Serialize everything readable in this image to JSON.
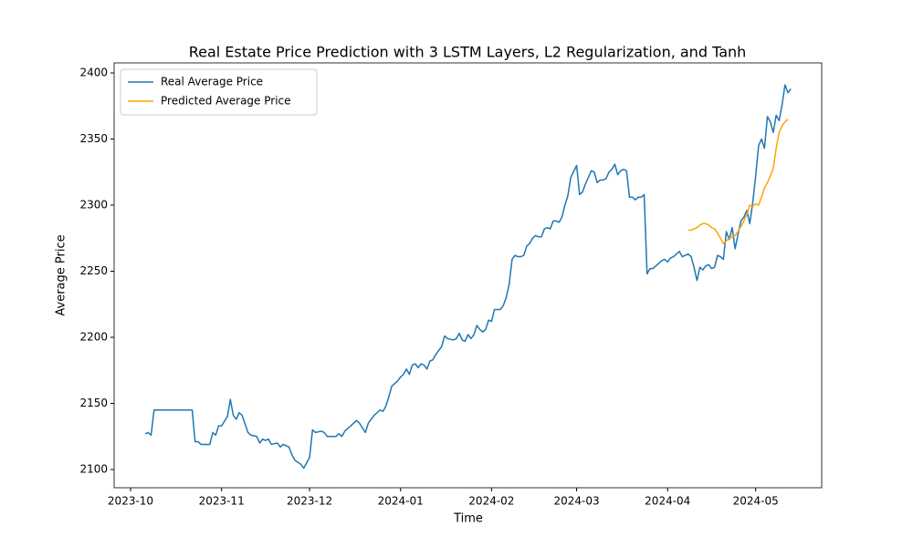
{
  "chart_data": {
    "type": "line",
    "title": "Real Estate Price Prediction with 3 LSTM Layers, L2 Regularization, and Tanh",
    "x_label": "Time",
    "y_label": "Average Price",
    "xlim": [
      -5.6,
      235.5
    ],
    "xticks": [
      {
        "value": 0,
        "label": "2023-10"
      },
      {
        "value": 31,
        "label": "2023-11"
      },
      {
        "value": 61,
        "label": "2023-12"
      },
      {
        "value": 92,
        "label": "2024-01"
      },
      {
        "value": 123,
        "label": "2024-02"
      },
      {
        "value": 152,
        "label": "2024-03"
      },
      {
        "value": 183,
        "label": "2024-04"
      },
      {
        "value": 213,
        "label": "2024-05"
      }
    ],
    "ylim": [
      2086.2,
      2407.6
    ],
    "yticks": [
      2100,
      2150,
      2200,
      2250,
      2300,
      2350,
      2400
    ],
    "legend": "upper left",
    "series": [
      {
        "name": "Real Average Price",
        "color": "#1f77b4",
        "x": [
          5,
          6,
          7,
          8,
          21,
          22,
          23,
          24,
          27,
          28,
          29,
          30,
          31,
          33,
          34,
          35,
          36,
          37,
          38,
          40,
          41,
          43,
          44,
          45,
          46,
          47,
          48,
          50,
          51,
          52,
          54,
          55,
          56,
          58,
          59,
          61,
          62,
          63,
          65,
          66,
          67,
          70,
          71,
          72,
          73,
          75,
          76,
          77,
          78,
          80,
          81,
          82,
          83,
          85,
          86,
          87,
          88,
          89,
          91,
          92,
          93,
          94,
          95,
          96,
          97,
          98,
          99,
          100,
          101,
          102,
          103,
          104,
          106,
          107,
          108,
          110,
          111,
          112,
          113,
          114,
          115,
          116,
          117,
          118,
          119,
          120,
          121,
          122,
          123,
          124,
          126,
          127,
          128,
          129,
          130,
          131,
          132,
          133,
          134,
          135,
          136,
          137,
          138,
          139,
          140,
          141,
          142,
          143,
          144,
          145,
          146,
          147,
          148,
          149,
          150,
          152,
          153,
          154,
          155,
          156,
          157,
          158,
          159,
          160,
          161,
          162,
          163,
          164,
          165,
          166,
          167,
          168,
          169,
          170,
          171,
          172,
          173,
          174,
          175,
          176,
          177,
          178,
          179,
          180,
          181,
          182,
          183,
          184,
          185,
          186,
          187,
          188,
          189,
          190,
          191,
          192,
          193,
          194,
          195,
          196,
          197,
          198,
          199,
          200,
          201,
          202,
          203,
          204,
          205,
          206,
          207,
          208,
          209,
          210,
          211,
          212,
          213,
          214,
          215,
          216,
          217,
          218,
          219,
          220,
          221,
          222,
          223,
          224,
          225
        ],
        "values": [
          2127,
          2128,
          2126,
          2145,
          2145,
          2121,
          2121,
          2119,
          2119,
          2128,
          2126,
          2133,
          2133,
          2140,
          2153,
          2141,
          2138,
          2143,
          2141,
          2128,
          2126,
          2125,
          2120,
          2123,
          2122,
          2123,
          2119,
          2120,
          2117,
          2119,
          2117,
          2111,
          2107,
          2104,
          2101,
          2109,
          2130,
          2128,
          2129,
          2128,
          2125,
          2125,
          2127,
          2125,
          2129,
          2133,
          2135,
          2137,
          2135,
          2128,
          2135,
          2138,
          2141,
          2145,
          2144,
          2148,
          2155,
          2163,
          2167,
          2170,
          2172,
          2176,
          2172,
          2179,
          2180,
          2177,
          2180,
          2179,
          2176,
          2182,
          2183,
          2187,
          2193,
          2201,
          2199,
          2198,
          2199,
          2203,
          2198,
          2197,
          2202,
          2199,
          2202,
          2209,
          2206,
          2204,
          2206,
          2213,
          2212,
          2221,
          2221,
          2224,
          2230,
          2240,
          2259,
          2262,
          2261,
          2261,
          2262,
          2269,
          2271,
          2275,
          2277,
          2276,
          2276,
          2282,
          2283,
          2282,
          2288,
          2288,
          2287,
          2291,
          2300,
          2307,
          2321,
          2330,
          2308,
          2310,
          2316,
          2321,
          2326,
          2325,
          2317,
          2319,
          2319,
          2320,
          2325,
          2327,
          2331,
          2323,
          2326,
          2327,
          2326,
          2306,
          2306,
          2304,
          2306,
          2306,
          2308,
          2248,
          2252,
          2252,
          2254,
          2256,
          2258,
          2259,
          2257,
          2260,
          2261,
          2263,
          2265,
          2261,
          2262,
          2263,
          2261,
          2253,
          2243,
          2253,
          2251,
          2254,
          2255,
          2252,
          2253,
          2262,
          2261,
          2259,
          2280,
          2274,
          2283,
          2267,
          2278,
          2288,
          2291,
          2296,
          2286,
          2302,
          2322,
          2345,
          2350,
          2343,
          2367,
          2363,
          2355,
          2368,
          2364,
          2376,
          2391,
          2385,
          2388
        ]
      },
      {
        "name": "Predicted Average Price",
        "color": "#ffa500",
        "x": [
          190,
          191,
          192,
          193,
          194,
          195,
          196,
          197,
          198,
          199,
          200,
          201,
          202,
          203,
          204,
          205,
          206,
          207,
          208,
          209,
          210,
          211,
          212,
          213,
          214,
          215,
          216,
          217,
          218,
          219,
          220,
          221,
          222,
          223,
          224
        ],
        "values": [
          2281,
          2281,
          2282,
          2283,
          2285,
          2286,
          2286,
          2285,
          2283,
          2282,
          2279,
          2275,
          2271,
          2273,
          2275,
          2276,
          2277,
          2280,
          2284,
          2288,
          2293,
          2300,
          2299,
          2301,
          2300,
          2306,
          2313,
          2317,
          2322,
          2328,
          2343,
          2355,
          2360,
          2363,
          2365
        ]
      }
    ]
  }
}
